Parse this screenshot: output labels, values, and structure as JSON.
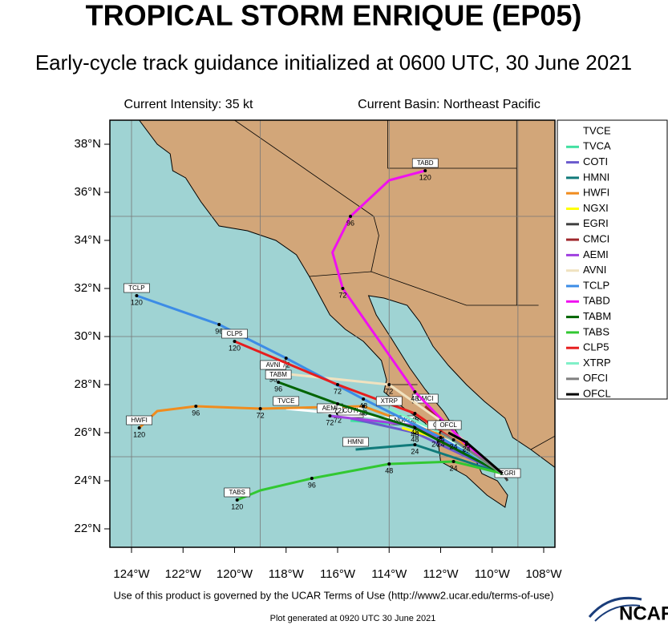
{
  "header": {
    "title": "TROPICAL STORM ENRIQUE (EP05)",
    "subtitle": "Early-cycle track guidance initialized at 0600 UTC, 30 June 2021",
    "intensity": "Current Intensity: 35 kt",
    "basin": "Current Basin: Northeast Pacific"
  },
  "map": {
    "lon_ticks": [
      {
        "value": -124,
        "label": "124°W"
      },
      {
        "value": -122,
        "label": "122°W"
      },
      {
        "value": -120,
        "label": "120°W"
      },
      {
        "value": -118,
        "label": "118°W"
      },
      {
        "value": -116,
        "label": "116°W"
      },
      {
        "value": -114,
        "label": "114°W"
      },
      {
        "value": -112,
        "label": "112°W"
      },
      {
        "value": -110,
        "label": "110°W"
      },
      {
        "value": -108,
        "label": "108°W"
      }
    ],
    "lat_ticks": [
      {
        "value": 38,
        "label": "38°N"
      },
      {
        "value": 36,
        "label": "36°N"
      },
      {
        "value": 34,
        "label": "34°N"
      },
      {
        "value": 32,
        "label": "32°N"
      },
      {
        "value": 30,
        "label": "30°N"
      },
      {
        "value": 28,
        "label": "28°N"
      },
      {
        "value": 26,
        "label": "26°N"
      },
      {
        "value": 24,
        "label": "24°N"
      },
      {
        "value": 22,
        "label": "22°N"
      }
    ],
    "tracks": [
      {
        "name": "TVCE",
        "color": "#ffffff",
        "lon": [
          -109.6,
          -113,
          -116,
          -118
        ],
        "lat": [
          24.3,
          26.5,
          26.8,
          27
        ],
        "hours": [
          null,
          null,
          "72",
          null
        ]
      },
      {
        "name": "TVCA",
        "color": "#40e0a0",
        "lon": [
          -109.6,
          -113,
          -115.5
        ],
        "lat": [
          24.3,
          26.3,
          26.5
        ],
        "hours": [
          null,
          "48",
          null
        ]
      },
      {
        "name": "COTI",
        "color": "#6a5acd",
        "lon": [
          -109.6,
          -113,
          -115.5
        ],
        "lat": [
          24.3,
          26,
          26.6
        ],
        "hours": [
          null,
          "48",
          null
        ]
      },
      {
        "name": "HMNI",
        "color": "#107a7a",
        "lon": [
          -109.6,
          -113,
          -115.3
        ],
        "lat": [
          24.3,
          25.5,
          25.3
        ],
        "hours": [
          null,
          "24",
          null
        ]
      },
      {
        "name": "HWFI",
        "color": "#f08c1e",
        "lon": [
          -109.6,
          -111,
          -115,
          -119,
          -121.5,
          -123,
          -123.7
        ],
        "lat": [
          24.3,
          25.5,
          27.1,
          27,
          27.1,
          26.9,
          26.2
        ],
        "hours": [
          null,
          "24",
          "48",
          "72",
          "96",
          null,
          "120"
        ]
      },
      {
        "name": "NGXI",
        "color": "#ffff00",
        "lon": [
          -109.6,
          -112.2,
          -113.5
        ],
        "lat": [
          24.3,
          25.8,
          26.2
        ],
        "hours": [
          null,
          "24",
          null
        ]
      },
      {
        "name": "EGRI",
        "color": "#404040",
        "lon": [
          -109.6,
          -109.4
        ],
        "lat": [
          24.3,
          24
        ],
        "hours": [
          null,
          null
        ]
      },
      {
        "name": "CMCI",
        "color": "#a0282d",
        "lon": [
          -109.6,
          -112,
          -112.6
        ],
        "lat": [
          24.3,
          26.5,
          27.1
        ],
        "hours": [
          null,
          "48",
          null
        ]
      },
      {
        "name": "AEMI",
        "color": "#a040e0",
        "lon": [
          -109.6,
          -113,
          -116.3
        ],
        "lat": [
          24.3,
          26.3,
          26.7
        ],
        "hours": [
          null,
          "48",
          "72"
        ]
      },
      {
        "name": "AVNI",
        "color": "#f0e2c0",
        "lon": [
          -109.6,
          -112,
          -114,
          -118.5
        ],
        "lat": [
          24.3,
          26.5,
          28,
          28.5
        ],
        "hours": [
          null,
          "48",
          "72",
          "96"
        ]
      },
      {
        "name": "TCLP",
        "color": "#3c8ce6",
        "lon": [
          -109.6,
          -112,
          -115,
          -118,
          -120.6,
          -123.8
        ],
        "lat": [
          24.3,
          25.8,
          27.4,
          29.1,
          30.5,
          31.7
        ],
        "hours": [
          null,
          "24",
          "48",
          "72",
          "96",
          "120"
        ]
      },
      {
        "name": "TABD",
        "color": "#f010f0",
        "lon": [
          -109.6,
          -111,
          -113,
          -114.5,
          -115.8,
          -116.2,
          -115.5,
          -114,
          -112.6
        ],
        "lat": [
          24.3,
          25.5,
          27.7,
          30,
          32,
          33.5,
          35,
          36.5,
          36.9
        ],
        "hours": [
          null,
          "24",
          "48",
          null,
          "72",
          null,
          "96",
          null,
          "120"
        ]
      },
      {
        "name": "TABM",
        "color": "#006400",
        "lon": [
          -109.6,
          -113,
          -116,
          -118.3
        ],
        "lat": [
          24.3,
          26.2,
          27.2,
          28.1
        ],
        "hours": [
          null,
          "48",
          "72",
          "96"
        ]
      },
      {
        "name": "TABS",
        "color": "#32c832",
        "lon": [
          -109.6,
          -111.5,
          -114,
          -117,
          -119,
          -119.9
        ],
        "lat": [
          24.3,
          24.8,
          24.7,
          24.1,
          23.6,
          23.2
        ],
        "hours": [
          null,
          "24",
          "48",
          "96",
          null,
          "120"
        ]
      },
      {
        "name": "CLP5",
        "color": "#e61e1e",
        "lon": [
          -109.6,
          -113,
          -116,
          -120
        ],
        "lat": [
          24.3,
          26.8,
          28,
          29.8
        ],
        "hours": [
          null,
          "48",
          "72",
          "120"
        ]
      },
      {
        "name": "XTRP",
        "color": "#80f0c8",
        "lon": [
          -109.6,
          -112,
          -114
        ],
        "lat": [
          24.3,
          26,
          27
        ],
        "hours": [
          null,
          "24",
          null
        ]
      },
      {
        "name": "OFCI",
        "color": "#808080",
        "lon": [
          -109.6,
          -111.5,
          -112
        ],
        "lat": [
          24.3,
          25.7,
          26
        ],
        "hours": [
          null,
          "24",
          null
        ]
      },
      {
        "name": "OFCL",
        "color": "#000000",
        "lon": [
          -109.6,
          -111,
          -111.7
        ],
        "lat": [
          24.3,
          25.6,
          26
        ],
        "hours": [
          null,
          "24",
          null
        ]
      }
    ]
  },
  "footer": {
    "terms": "Use of this product is governed by the UCAR Terms of Use (http://www2.ucar.edu/terms-of-use)",
    "generated": "Plot generated at 0920 UTC   30 June 2021",
    "logo": "NCAR"
  }
}
